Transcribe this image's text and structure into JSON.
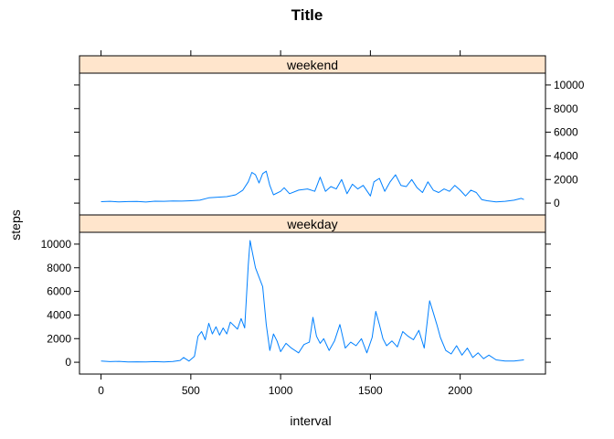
{
  "chart_data": {
    "type": "line",
    "title": "Title",
    "xlabel": "interval",
    "ylabel": "steps",
    "xlim": [
      -120,
      2475
    ],
    "ylim": [
      -1000,
      11000
    ],
    "x_ticks": [
      0,
      500,
      1000,
      1500,
      2000
    ],
    "y_ticks": [
      0,
      2000,
      4000,
      6000,
      8000,
      10000
    ],
    "grid": false,
    "colors": {
      "line": "#0080ff",
      "strip": "#ffe5cc",
      "frame": "#000000"
    },
    "panels": [
      {
        "strip": "weekend",
        "x": [
          0,
          50,
          100,
          150,
          200,
          250,
          300,
          350,
          400,
          450,
          500,
          550,
          600,
          650,
          700,
          750,
          790,
          820,
          840,
          860,
          880,
          900,
          920,
          940,
          960,
          1000,
          1020,
          1050,
          1100,
          1150,
          1190,
          1220,
          1250,
          1280,
          1310,
          1340,
          1370,
          1400,
          1430,
          1460,
          1500,
          1520,
          1550,
          1580,
          1610,
          1640,
          1670,
          1700,
          1730,
          1760,
          1790,
          1820,
          1850,
          1880,
          1910,
          1940,
          1970,
          2000,
          2030,
          2060,
          2090,
          2120,
          2150,
          2200,
          2250,
          2300,
          2340,
          2355
        ],
        "values": [
          120,
          150,
          100,
          130,
          140,
          90,
          160,
          150,
          180,
          170,
          200,
          250,
          450,
          500,
          550,
          700,
          1100,
          1800,
          2600,
          2400,
          1700,
          2500,
          2700,
          1500,
          700,
          1000,
          1300,
          800,
          1100,
          1200,
          1000,
          2200,
          1000,
          1400,
          1200,
          2000,
          800,
          1600,
          1200,
          1500,
          600,
          1800,
          2100,
          1000,
          1800,
          2400,
          1500,
          1400,
          2000,
          1300,
          900,
          1800,
          1100,
          900,
          1200,
          1000,
          1500,
          1100,
          600,
          1100,
          900,
          300,
          200,
          100,
          150,
          250,
          400,
          300
        ]
      },
      {
        "strip": "weekday",
        "x": [
          0,
          50,
          100,
          150,
          200,
          250,
          300,
          350,
          400,
          440,
          460,
          490,
          520,
          540,
          560,
          580,
          600,
          620,
          640,
          660,
          680,
          700,
          720,
          740,
          760,
          780,
          800,
          820,
          830,
          840,
          860,
          880,
          900,
          920,
          940,
          960,
          980,
          1000,
          1030,
          1060,
          1100,
          1130,
          1160,
          1180,
          1200,
          1220,
          1240,
          1270,
          1300,
          1330,
          1360,
          1390,
          1420,
          1450,
          1480,
          1510,
          1530,
          1550,
          1570,
          1590,
          1620,
          1650,
          1680,
          1710,
          1740,
          1770,
          1800,
          1830,
          1850,
          1870,
          1890,
          1920,
          1950,
          1980,
          2010,
          2040,
          2070,
          2100,
          2130,
          2160,
          2200,
          2250,
          2300,
          2355
        ],
        "values": [
          100,
          50,
          80,
          30,
          40,
          20,
          50,
          30,
          60,
          150,
          400,
          100,
          500,
          2200,
          2600,
          1900,
          3300,
          2400,
          3000,
          2300,
          2900,
          2400,
          3400,
          3100,
          2800,
          3700,
          2900,
          8200,
          10300,
          9500,
          8000,
          7200,
          6400,
          3200,
          1000,
          2400,
          1800,
          900,
          1600,
          1200,
          800,
          1500,
          1700,
          3800,
          2200,
          1600,
          2000,
          1000,
          1800,
          3200,
          1200,
          1700,
          1400,
          2000,
          800,
          2100,
          4300,
          3200,
          2000,
          1400,
          1800,
          1300,
          2600,
          2200,
          1900,
          2700,
          1200,
          5200,
          4200,
          3200,
          2100,
          1000,
          700,
          1400,
          600,
          1200,
          400,
          800,
          300,
          600,
          200,
          100,
          100,
          200
        ]
      }
    ]
  }
}
